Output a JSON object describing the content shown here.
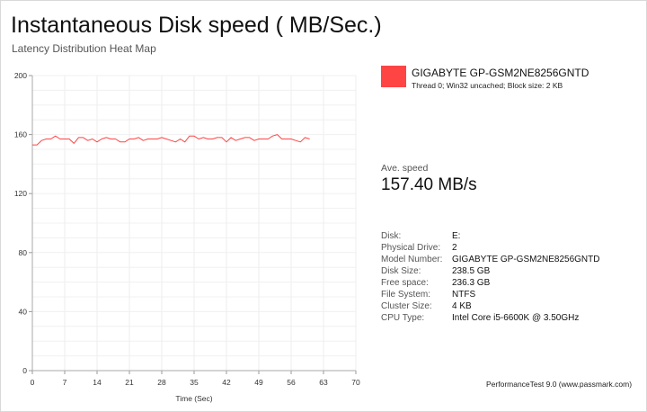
{
  "header": {
    "title": "Instantaneous Disk speed ( MB/Sec.)",
    "subtitle": "Latency Distribution Heat Map"
  },
  "legend": {
    "name": "GIGABYTE GP-GSM2NE8256GNTD",
    "detail": "Thread 0; Win32 uncached; Block size: 2 KB",
    "color": "#ff4444"
  },
  "summary": {
    "label": "Ave. speed",
    "value": "157.40 MB/s"
  },
  "info": [
    {
      "key": "Disk:",
      "value": "E:"
    },
    {
      "key": "Physical Drive:",
      "value": "2"
    },
    {
      "key": "Model Number:",
      "value": "GIGABYTE GP-GSM2NE8256GNTD"
    },
    {
      "key": "Disk Size:",
      "value": "238.5 GB"
    },
    {
      "key": "Free space:",
      "value": "236.3 GB"
    },
    {
      "key": "File System:",
      "value": "NTFS"
    },
    {
      "key": "Cluster Size:",
      "value": "4 KB"
    },
    {
      "key": "CPU Type:",
      "value": "Intel Core i5-6600K @ 3.50GHz"
    }
  ],
  "footer": "PerformanceTest 9.0 (www.passmark.com)",
  "chart_data": {
    "type": "line",
    "xlabel": "Time (Sec)",
    "ylabel": "",
    "xlim": [
      0,
      70
    ],
    "ylim": [
      0,
      200
    ],
    "xticks": [
      0,
      7,
      14,
      21,
      28,
      35,
      42,
      49,
      56,
      63,
      70
    ],
    "yticks": [
      0,
      40,
      80,
      120,
      160,
      200
    ],
    "grid": true,
    "line_color": "#ff4444",
    "series": [
      {
        "name": "GIGABYTE GP-GSM2NE8256GNTD",
        "x": [
          0,
          1,
          2,
          3,
          4,
          5,
          6,
          7,
          8,
          9,
          10,
          11,
          12,
          13,
          14,
          15,
          16,
          17,
          18,
          19,
          20,
          21,
          22,
          23,
          24,
          25,
          26,
          27,
          28,
          29,
          30,
          31,
          32,
          33,
          34,
          35,
          36,
          37,
          38,
          39,
          40,
          41,
          42,
          43,
          44,
          45,
          46,
          47,
          48,
          49,
          50,
          51,
          52,
          53,
          54,
          55,
          56,
          57,
          58,
          59,
          60
        ],
        "values": [
          153,
          153,
          156,
          157,
          157,
          159,
          157,
          157,
          157,
          154,
          158,
          158,
          156,
          157,
          155,
          157,
          158,
          157,
          157,
          155,
          155,
          157,
          157,
          158,
          156,
          157,
          157,
          157,
          158,
          157,
          156,
          155,
          157,
          155,
          159,
          159,
          157,
          158,
          157,
          157,
          158,
          158,
          155,
          158,
          156,
          157,
          158,
          158,
          156,
          157,
          157,
          157,
          159,
          160,
          157,
          157,
          157,
          156,
          155,
          158,
          157
        ]
      }
    ]
  }
}
